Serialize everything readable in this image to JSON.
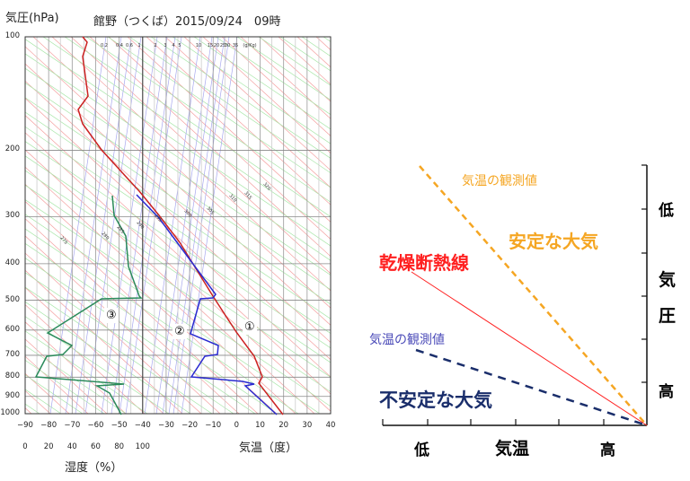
{
  "emagram": {
    "y_axis_title": "気圧(hPa)",
    "title": "館野（つくば）2015/09/24　09時",
    "pressure_ticks": [
      "100",
      "200",
      "300",
      "400",
      "500",
      "600",
      "700",
      "800",
      "900",
      "1000"
    ],
    "temp_ticks": [
      "−90",
      "−80",
      "−70",
      "−60",
      "−50",
      "−40",
      "−30",
      "−20",
      "−10",
      "0",
      "10",
      "20",
      "30",
      "40"
    ],
    "humidity_ticks": [
      "0",
      "20",
      "40",
      "60",
      "80",
      "100"
    ],
    "temp_axis_title": "気温（度）",
    "humidity_axis_title": "湿度（%）",
    "mixing_ratio_labels": [
      "0.2",
      "0.4",
      "0.6",
      "1",
      "2",
      "3",
      "4",
      "5",
      "10",
      "15",
      "20",
      "25",
      "30",
      "35",
      "(g/Kg)"
    ],
    "theta_labels": [
      "275",
      "280",
      "285",
      "290",
      "295",
      "300",
      "305",
      "310",
      "315",
      "320"
    ],
    "markers": {
      "temperature": "①",
      "dewpoint": "②",
      "humidity": "③"
    },
    "colors": {
      "temperature": "#cc2222",
      "dewpoint": "#2a2ad0",
      "humidity": "#2a8a5a"
    }
  },
  "schematic": {
    "observed_stable_label": "気温の観測値",
    "stable_label": "安定な大気",
    "dry_adiabat_label": "乾燥断熱線",
    "observed_unstable_label": "気温の観測値",
    "unstable_label": "不安定な大気",
    "y_axis": {
      "low": "低",
      "title_1": "気",
      "title_2": "圧",
      "high": "高"
    },
    "x_axis": {
      "low": "低",
      "title": "気温",
      "high": "高"
    },
    "colors": {
      "stable": "#f5a623",
      "dry": "#ff2020",
      "unstable": "#1a2e6b",
      "observed_unstable_text": "#4a4ab8"
    }
  }
}
